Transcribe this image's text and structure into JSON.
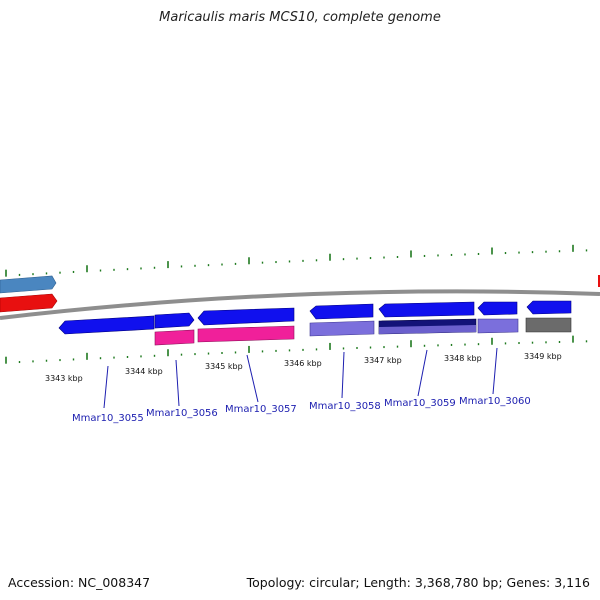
{
  "title": "Maricaulis maris MCS10, complete genome",
  "footer": {
    "accession": "Accession: NC_008347",
    "summary": "Topology: circular; Length: 3,368,780 bp; Genes: 3,116"
  },
  "colors": {
    "backbone": "#8e8e8e",
    "tick": "#1f7a1f",
    "label": "#1d1fb0",
    "blue": "#1010ee",
    "pink": "#f0209a",
    "purple": "#7b6fdc",
    "navy": "#131378",
    "gray": "#6b6b6b",
    "red": "#e81010",
    "steel": "#4a86c0"
  },
  "scale_labels": [
    "3343 kbp",
    "3344 kbp",
    "3345 kbp",
    "3346 kbp",
    "3347 kbp",
    "3348 kbp",
    "3349 kbp"
  ],
  "gene_labels": [
    "Mmar10_3055",
    "Mmar10_3056",
    "Mmar10_3057",
    "Mmar10_3058",
    "Mmar10_3059",
    "Mmar10_3060"
  ]
}
